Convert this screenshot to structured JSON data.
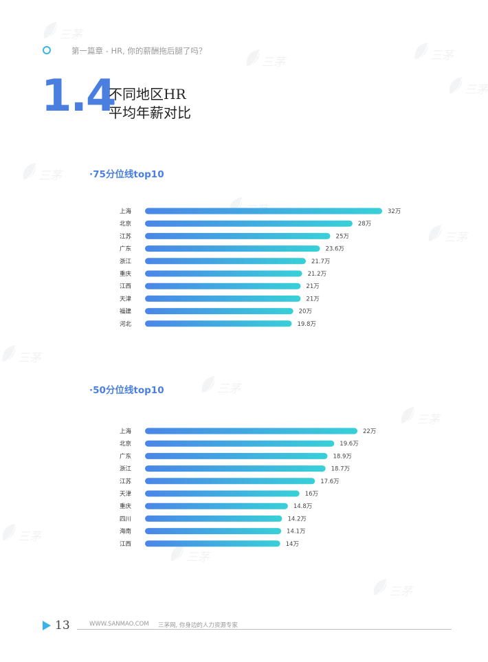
{
  "header": {
    "chapter": "第一篇章 - HR, 你的薪酬拖后腿了吗？"
  },
  "title": {
    "number": "1.4",
    "line1": "不同地区HR",
    "line2": "平均年薪对比"
  },
  "footer": {
    "page": "13",
    "url": "WWW.SANMAO.COM",
    "slogan": "三茅网, 你身边的人力资源专家"
  },
  "watermark": {
    "brand": "三茅",
    "icon": "leaf-logo-icon"
  },
  "colors": {
    "accent": "#4a7fe0",
    "bar_start": "#4a86e8",
    "bar_end": "#38d0d8",
    "ring": "#3bb3e6"
  },
  "chart_data": [
    {
      "type": "bar",
      "orientation": "horizontal",
      "title": "·75分位线top10",
      "unit": "万",
      "categories": [
        "上海",
        "北京",
        "江苏",
        "广东",
        "浙江",
        "重庆",
        "江西",
        "天津",
        "福建",
        "河北"
      ],
      "values": [
        32,
        28,
        25,
        23.6,
        21.7,
        21.2,
        21,
        21,
        20,
        19.8
      ],
      "value_labels": [
        "32万",
        "28万",
        "25万",
        "23.6万",
        "21.7万",
        "21.2万",
        "21万",
        "21万",
        "20万",
        "19.8万"
      ],
      "grid": false,
      "legend": "none"
    },
    {
      "type": "bar",
      "orientation": "horizontal",
      "title": "·50分位线top10",
      "unit": "万",
      "categories": [
        "上海",
        "北京",
        "广东",
        "浙江",
        "江苏",
        "天津",
        "重庆",
        "四川",
        "海南",
        "江西"
      ],
      "values": [
        22,
        19.6,
        18.9,
        18.7,
        17.6,
        16,
        14.8,
        14.2,
        14.1,
        14
      ],
      "value_labels": [
        "22万",
        "19.6万",
        "18.9万",
        "18.7万",
        "17.6万",
        "16万",
        "14.8万",
        "14.2万",
        "14.1万",
        "14万"
      ],
      "grid": false,
      "legend": "none"
    }
  ]
}
